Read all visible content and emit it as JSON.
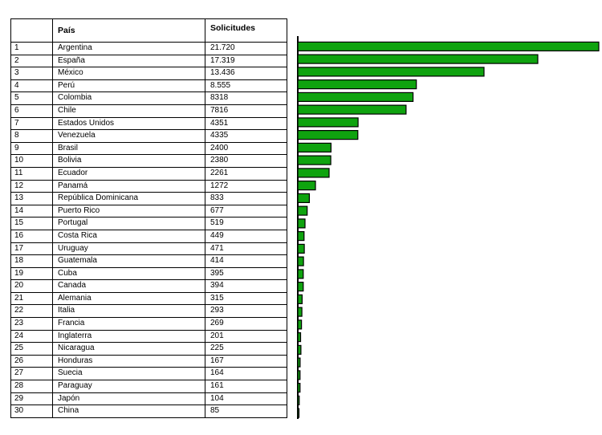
{
  "table": {
    "headers": [
      "",
      "País",
      "Solicitudes"
    ],
    "rows": [
      [
        "1",
        "Argentina",
        "21.720"
      ],
      [
        "2",
        "España",
        "17.319"
      ],
      [
        "3",
        "México",
        "13.436"
      ],
      [
        "4",
        "Perú",
        "8.555"
      ],
      [
        "5",
        "Colombia",
        "8318"
      ],
      [
        "6",
        "Chile",
        "7816"
      ],
      [
        "7",
        "Estados Unidos",
        "4351"
      ],
      [
        "8",
        "Venezuela",
        "4335"
      ],
      [
        "9",
        "Brasil",
        "2400"
      ],
      [
        "10",
        "Bolivia",
        "2380"
      ],
      [
        "11",
        "Ecuador",
        "2261"
      ],
      [
        "12",
        "Panamá",
        "1272"
      ],
      [
        "13",
        "República Dominicana",
        "833"
      ],
      [
        "14",
        "Puerto Rico",
        "677"
      ],
      [
        "15",
        "Portugal",
        "519"
      ],
      [
        "16",
        "Costa Rica",
        "449"
      ],
      [
        "17",
        "Uruguay",
        "471"
      ],
      [
        "18",
        "Guatemala",
        "414"
      ],
      [
        "19",
        "Cuba",
        "395"
      ],
      [
        "20",
        "Canada",
        "394"
      ],
      [
        "21",
        "Alemania",
        "315"
      ],
      [
        "22",
        "Italia",
        "293"
      ],
      [
        "23",
        "Francia",
        "269"
      ],
      [
        "24",
        "Inglaterra",
        "201"
      ],
      [
        "25",
        "Nicaragua",
        "225"
      ],
      [
        "26",
        "Honduras",
        "167"
      ],
      [
        "27",
        "Suecia",
        "164"
      ],
      [
        "28",
        "Paraguay",
        "161"
      ],
      [
        "29",
        "Japón",
        "104"
      ],
      [
        "30",
        "China",
        "85"
      ]
    ]
  },
  "colors": {
    "bar_fill": "#0fa30f",
    "bar_stroke": "#000000",
    "grid_line": "#000000"
  },
  "chart_data": {
    "type": "bar",
    "orientation": "horizontal",
    "categories": [
      "Argentina",
      "España",
      "México",
      "Perú",
      "Colombia",
      "Chile",
      "Estados Unidos",
      "Venezuela",
      "Brasil",
      "Bolivia",
      "Ecuador",
      "Panamá",
      "República Dominicana",
      "Puerto Rico",
      "Portugal",
      "Costa Rica",
      "Uruguay",
      "Guatemala",
      "Cuba",
      "Canada",
      "Alemania",
      "Italia",
      "Francia",
      "Inglaterra",
      "Nicaragua",
      "Honduras",
      "Suecia",
      "Paraguay",
      "Japón",
      "China"
    ],
    "values": [
      21720,
      17319,
      13436,
      8555,
      8318,
      7816,
      4351,
      4335,
      2400,
      2380,
      2261,
      1272,
      833,
      677,
      519,
      449,
      471,
      414,
      395,
      394,
      315,
      293,
      269,
      201,
      225,
      167,
      164,
      161,
      104,
      85
    ],
    "xlim": [
      0,
      21720
    ],
    "title": "",
    "xlabel": "",
    "ylabel": "",
    "grid": false,
    "legend": "none"
  }
}
